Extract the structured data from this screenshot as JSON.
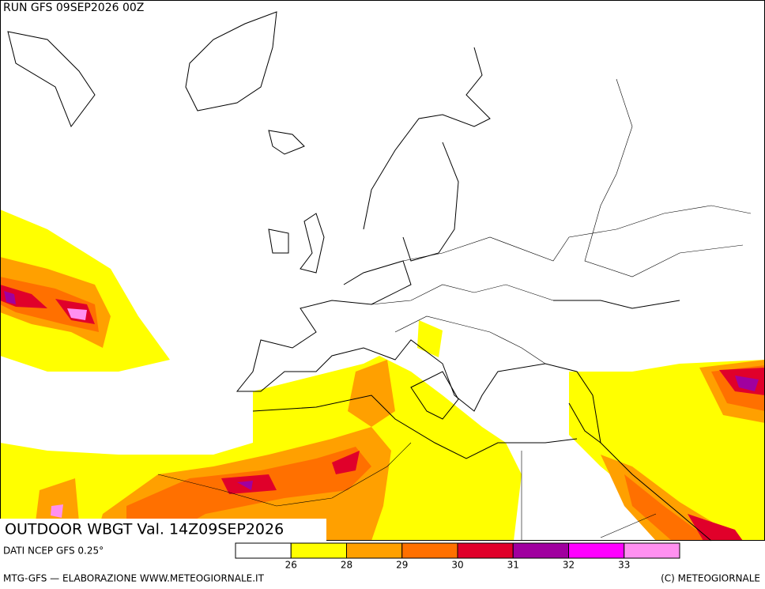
{
  "header": {
    "run": "RUN GFS 09SEP2026 00Z"
  },
  "title": "OUTDOOR WBGT Val. 14Z09SEP2026",
  "source": "DATI NCEP GFS 0.25°",
  "legend": {
    "colors": [
      "#ffffff",
      "#ffff00",
      "#ffa000",
      "#ff7000",
      "#e0002a",
      "#a0009f",
      "#ff00ff",
      "#ff90f0"
    ],
    "thresholds": [
      26,
      28,
      29,
      30,
      31,
      32,
      33
    ]
  },
  "footer": {
    "left": "MTG-GFS — ELABORAZIONE WWW.METEOGIORNALE.IT",
    "right": "(C) METEOGIORNALE"
  }
}
